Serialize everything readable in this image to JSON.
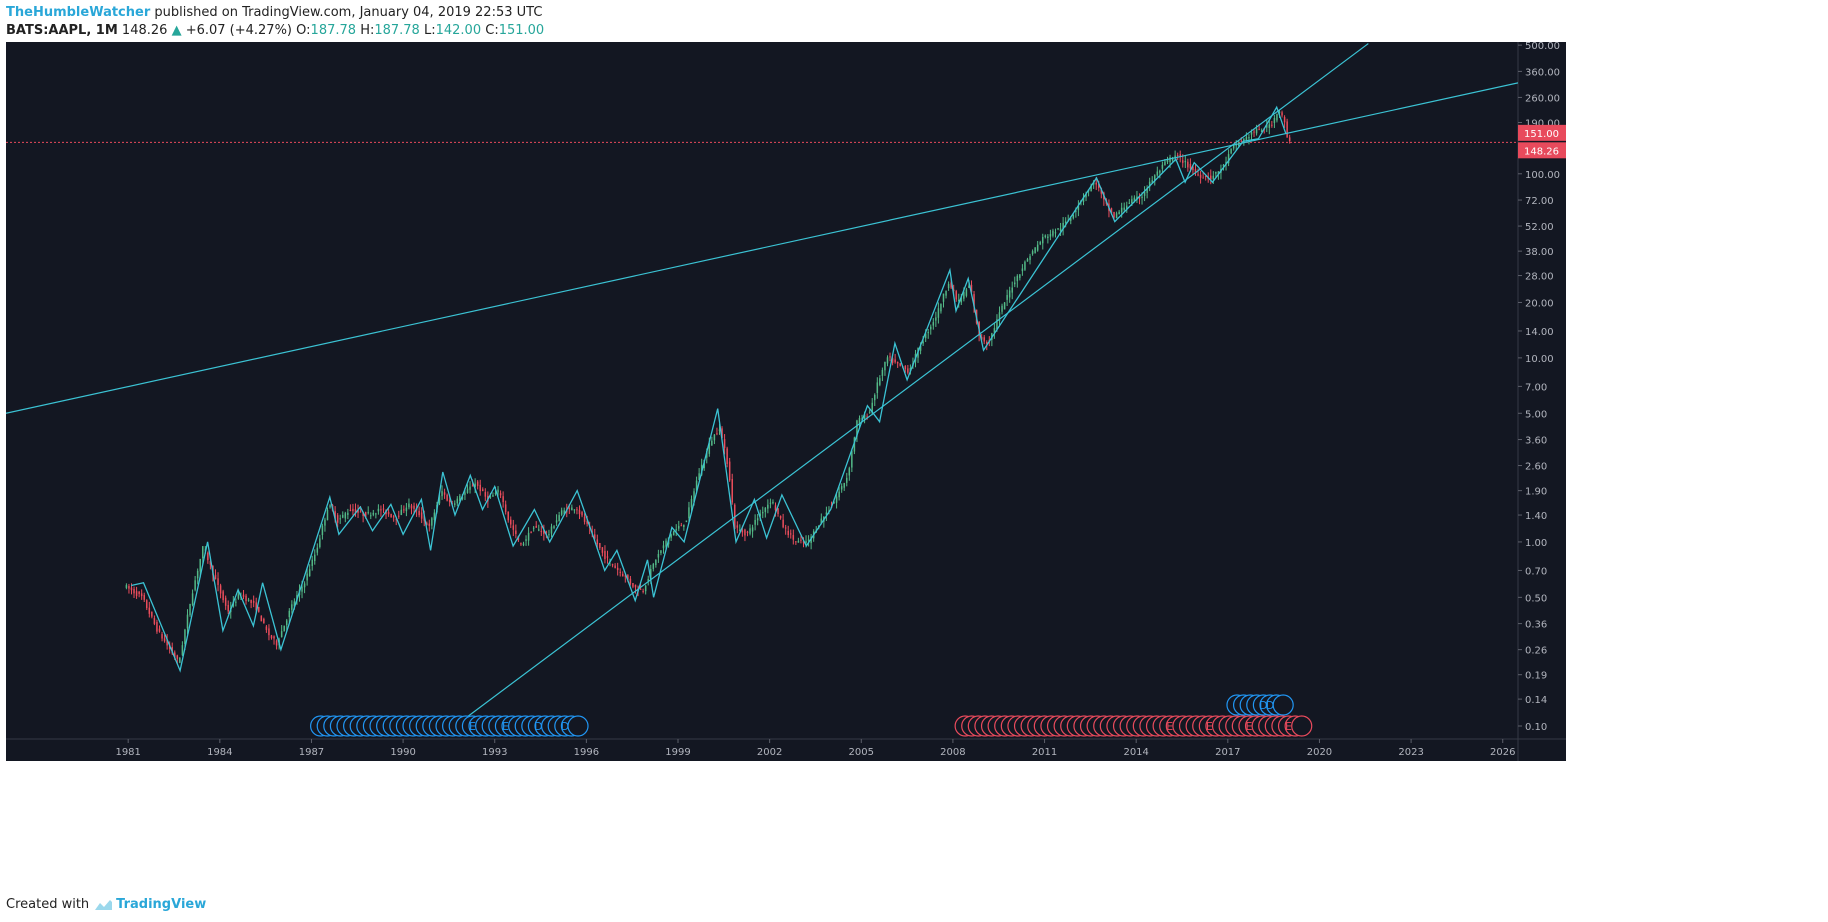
{
  "header": {
    "author": "TheHumbleWatcher",
    "published_text": " published on TradingView.com, January 04, 2019 22:53 UTC",
    "symbol": "BATS:AAPL, 1M",
    "last": "148.26",
    "change_arrow": "▲",
    "change": "+6.07 (+4.27%)",
    "o_label": "O:",
    "o_value": "187.78",
    "h_label": "H:",
    "h_value": "187.78",
    "l_label": "L:",
    "l_value": "142.00",
    "c_label": "C:",
    "c_value": "151.00"
  },
  "footer": {
    "created_with": "Created with",
    "brand": "TradingView"
  },
  "colors": {
    "background": "#131722",
    "up": "#53b987",
    "down": "#eb4d5c",
    "line": "#3bc3d4",
    "zigzag": "#3bc3d4",
    "axis_text": "#b2b5be",
    "price_tag": "#e84a5c",
    "marker_blue": "#2196f3",
    "marker_red": "#e84a5c"
  },
  "chart_data": {
    "type": "candlestick",
    "symbol": "AAPL",
    "interval": "1M",
    "y_scale": "log",
    "ylim": [
      0.085,
      520
    ],
    "xlim": [
      1977,
      2026.5
    ],
    "y_ticks": [
      "500.00",
      "360.00",
      "260.00",
      "190.00",
      "140.00",
      "100.00",
      "72.00",
      "52.00",
      "38.00",
      "28.00",
      "20.00",
      "14.00",
      "10.00",
      "7.00",
      "5.00",
      "3.60",
      "2.60",
      "1.90",
      "1.40",
      "1.00",
      "0.70",
      "0.50",
      "0.36",
      "0.26",
      "0.19",
      "0.14",
      "0.10"
    ],
    "y_tick_values": [
      500,
      360,
      260,
      190,
      140,
      100,
      72,
      52,
      38,
      28,
      20,
      14,
      10,
      7,
      5,
      3.6,
      2.6,
      1.9,
      1.4,
      1,
      0.7,
      0.5,
      0.36,
      0.26,
      0.19,
      0.14,
      0.1
    ],
    "x_ticks": [
      "1981",
      "1984",
      "1987",
      "1990",
      "1993",
      "1996",
      "1999",
      "2002",
      "2005",
      "2008",
      "2011",
      "2014",
      "2017",
      "2020",
      "2023",
      "2026"
    ],
    "x_tick_values": [
      1981,
      1984,
      1987,
      1990,
      1993,
      1996,
      1999,
      2002,
      2005,
      2008,
      2011,
      2014,
      2017,
      2020,
      2023,
      2026
    ],
    "price_tags": [
      {
        "label": "151.00",
        "value": 151
      },
      {
        "label": "148.26",
        "value": 148.26
      }
    ],
    "current_price": 148.26,
    "price_path": [
      [
        1980.9,
        0.58
      ],
      [
        1981.5,
        0.5
      ],
      [
        1982.0,
        0.33
      ],
      [
        1982.7,
        0.22
      ],
      [
        1983.1,
        0.5
      ],
      [
        1983.5,
        0.95
      ],
      [
        1983.9,
        0.62
      ],
      [
        1984.3,
        0.42
      ],
      [
        1984.7,
        0.52
      ],
      [
        1985.2,
        0.45
      ],
      [
        1985.6,
        0.32
      ],
      [
        1985.9,
        0.28
      ],
      [
        1986.4,
        0.45
      ],
      [
        1986.8,
        0.6
      ],
      [
        1987.2,
        0.9
      ],
      [
        1987.6,
        1.6
      ],
      [
        1987.9,
        1.3
      ],
      [
        1988.3,
        1.5
      ],
      [
        1988.8,
        1.4
      ],
      [
        1989.3,
        1.5
      ],
      [
        1989.8,
        1.35
      ],
      [
        1990.2,
        1.6
      ],
      [
        1990.6,
        1.4
      ],
      [
        1990.9,
        1.2
      ],
      [
        1991.3,
        1.9
      ],
      [
        1991.6,
        1.6
      ],
      [
        1992.0,
        1.8
      ],
      [
        1992.4,
        2.1
      ],
      [
        1992.8,
        1.7
      ],
      [
        1993.2,
        1.9
      ],
      [
        1993.5,
        1.3
      ],
      [
        1993.9,
        0.95
      ],
      [
        1994.3,
        1.2
      ],
      [
        1994.8,
        1.1
      ],
      [
        1995.2,
        1.45
      ],
      [
        1995.7,
        1.55
      ],
      [
        1996.1,
        1.2
      ],
      [
        1996.6,
        0.85
      ],
      [
        1996.9,
        0.75
      ],
      [
        1997.3,
        0.65
      ],
      [
        1997.7,
        0.55
      ],
      [
        1997.9,
        0.55
      ],
      [
        1998.3,
        0.8
      ],
      [
        1998.8,
        1.1
      ],
      [
        1999.3,
        1.3
      ],
      [
        1999.7,
        2.3
      ],
      [
        2000.1,
        3.5
      ],
      [
        2000.4,
        4.2
      ],
      [
        2000.7,
        2.5
      ],
      [
        2000.9,
        1.2
      ],
      [
        2001.3,
        1.1
      ],
      [
        2001.7,
        1.4
      ],
      [
        2002.1,
        1.7
      ],
      [
        2002.5,
        1.2
      ],
      [
        2002.9,
        1.0
      ],
      [
        2003.3,
        1.0
      ],
      [
        2003.7,
        1.3
      ],
      [
        2004.1,
        1.6
      ],
      [
        2004.6,
        2.3
      ],
      [
        2004.9,
        4.5
      ],
      [
        2005.3,
        5.0
      ],
      [
        2005.6,
        7.5
      ],
      [
        2005.9,
        10.0
      ],
      [
        2006.3,
        9.0
      ],
      [
        2006.6,
        8.5
      ],
      [
        2007.0,
        12.0
      ],
      [
        2007.5,
        17.0
      ],
      [
        2007.9,
        26.0
      ],
      [
        2008.2,
        20.0
      ],
      [
        2008.6,
        25.0
      ],
      [
        2008.9,
        13.0
      ],
      [
        2009.2,
        12.0
      ],
      [
        2009.6,
        18.0
      ],
      [
        2010.0,
        25.0
      ],
      [
        2010.5,
        35.0
      ],
      [
        2011.0,
        45.0
      ],
      [
        2011.5,
        50.0
      ],
      [
        2011.9,
        58.0
      ],
      [
        2012.3,
        75.0
      ],
      [
        2012.7,
        92.0
      ],
      [
        2013.0,
        70.0
      ],
      [
        2013.3,
        58.0
      ],
      [
        2013.8,
        70.0
      ],
      [
        2014.2,
        75.0
      ],
      [
        2014.6,
        95.0
      ],
      [
        2015.1,
        120.0
      ],
      [
        2015.4,
        125.0
      ],
      [
        2015.7,
        112.0
      ],
      [
        2016.1,
        98.0
      ],
      [
        2016.5,
        95.0
      ],
      [
        2016.9,
        110.0
      ],
      [
        2017.2,
        140.0
      ],
      [
        2017.6,
        155.0
      ],
      [
        2017.9,
        170.0
      ],
      [
        2018.2,
        175.0
      ],
      [
        2018.5,
        190.0
      ],
      [
        2018.7,
        225.0
      ],
      [
        2018.9,
        190.0
      ],
      [
        2019.0,
        148.26
      ]
    ],
    "zigzag": [
      [
        1981.1,
        0.58
      ],
      [
        1981.5,
        0.6
      ],
      [
        1982.7,
        0.2
      ],
      [
        1983.6,
        1.0
      ],
      [
        1984.1,
        0.33
      ],
      [
        1984.6,
        0.55
      ],
      [
        1985.1,
        0.35
      ],
      [
        1985.4,
        0.6
      ],
      [
        1986.0,
        0.26
      ],
      [
        1987.6,
        1.75
      ],
      [
        1987.9,
        1.1
      ],
      [
        1988.6,
        1.55
      ],
      [
        1989.0,
        1.15
      ],
      [
        1989.6,
        1.6
      ],
      [
        1990.0,
        1.1
      ],
      [
        1990.6,
        1.7
      ],
      [
        1990.9,
        0.9
      ],
      [
        1991.3,
        2.4
      ],
      [
        1991.7,
        1.4
      ],
      [
        1992.2,
        2.3
      ],
      [
        1992.6,
        1.5
      ],
      [
        1993.0,
        2.0
      ],
      [
        1993.6,
        0.95
      ],
      [
        1994.3,
        1.5
      ],
      [
        1994.8,
        1.0
      ],
      [
        1995.7,
        1.9
      ],
      [
        1996.2,
        1.1
      ],
      [
        1996.6,
        0.7
      ],
      [
        1997.0,
        0.9
      ],
      [
        1997.6,
        0.48
      ],
      [
        1998.0,
        0.8
      ],
      [
        1998.2,
        0.5
      ],
      [
        1998.8,
        1.2
      ],
      [
        1999.2,
        1.0
      ],
      [
        2000.3,
        5.3
      ],
      [
        2000.9,
        1.0
      ],
      [
        2001.5,
        1.7
      ],
      [
        2001.9,
        1.05
      ],
      [
        2002.4,
        1.8
      ],
      [
        2003.2,
        0.95
      ],
      [
        2004.0,
        1.5
      ],
      [
        2005.2,
        5.5
      ],
      [
        2005.6,
        4.5
      ],
      [
        2006.1,
        12.0
      ],
      [
        2006.5,
        7.6
      ],
      [
        2007.9,
        30.0
      ],
      [
        2008.1,
        18.0
      ],
      [
        2008.5,
        27.0
      ],
      [
        2009.0,
        11.0
      ],
      [
        2012.7,
        95.0
      ],
      [
        2013.3,
        55.0
      ],
      [
        2015.3,
        120.0
      ],
      [
        2015.6,
        90.0
      ],
      [
        2015.9,
        115.0
      ],
      [
        2016.5,
        90.0
      ],
      [
        2017.5,
        150.0
      ],
      [
        2018.0,
        155.0
      ],
      [
        2018.6,
        230.0
      ],
      [
        2018.9,
        165.0
      ]
    ],
    "trendlines": [
      {
        "from": [
          1977.0,
          5.0
        ],
        "to": [
          2026.5,
          312.0
        ]
      },
      {
        "from": [
          1991.7,
          0.1
        ],
        "to": [
          2021.6,
          510.0
        ]
      }
    ],
    "markers_blue_row1": {
      "start": 1987.3,
      "end": 1995.9,
      "value": 0.1,
      "labels": [
        "E",
        "E",
        "D",
        "D"
      ]
    },
    "markers_blue_row2": {
      "start": 2017.3,
      "end": 2018.9,
      "value": 0.13,
      "labels": [
        "D",
        "D"
      ]
    },
    "markers_red_row": {
      "start": 2008.4,
      "end": 2019.5,
      "value": 0.1,
      "labels": [
        "E",
        "E",
        "E",
        "E"
      ]
    }
  }
}
